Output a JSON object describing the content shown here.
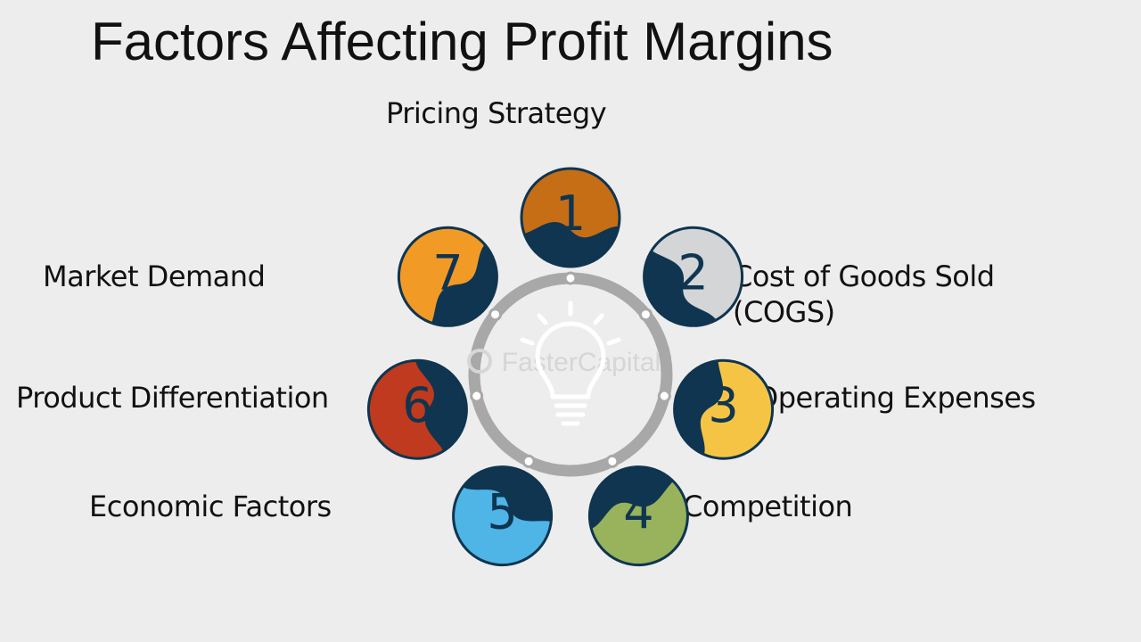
{
  "title": "Factors Affecting Profit Margins",
  "watermark": "FasterCapital",
  "colors": {
    "background": "#eeeded",
    "ring": "#a8a8a8",
    "segment_dark": "#0f3550",
    "text": "#111111"
  },
  "center_icon": "lightbulb-icon",
  "factors": [
    {
      "number": "1",
      "label_lines": [
        "Pricing Strategy"
      ],
      "color": "#c66e15"
    },
    {
      "number": "2",
      "label_lines": [
        "Cost of Goods Sold",
        "(COGS)"
      ],
      "color": "#d3d5d6"
    },
    {
      "number": "3",
      "label_lines": [
        "Operating Expenses"
      ],
      "color": "#f6c445"
    },
    {
      "number": "4",
      "label_lines": [
        "Competition"
      ],
      "color": "#99b25c"
    },
    {
      "number": "5",
      "label_lines": [
        "Economic Factors"
      ],
      "color": "#4fb4e6"
    },
    {
      "number": "6",
      "label_lines": [
        "Product Differentiation"
      ],
      "color": "#bf3a1e"
    },
    {
      "number": "7",
      "label_lines": [
        "Market Demand"
      ],
      "color": "#f29a26"
    }
  ]
}
